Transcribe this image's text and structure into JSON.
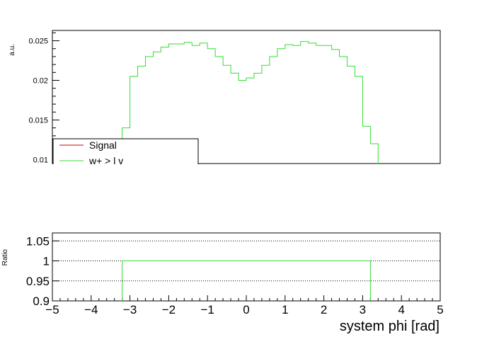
{
  "chart_data": [
    {
      "panel": "top",
      "type": "step-histogram",
      "ylabel": "a.u.",
      "xlim": [
        -5,
        5
      ],
      "ylim": [
        0.0095,
        0.0263
      ],
      "yticks": [
        0.01,
        0.015,
        0.02,
        0.025
      ],
      "ytick_labels": [
        "0.01",
        "0.015",
        "0.02",
        "0.025"
      ],
      "grid": false,
      "legend": {
        "placement": "bottom-left",
        "entries": [
          {
            "label": "Signal",
            "color": "#cc0000"
          },
          {
            "label": "w+ > l v",
            "color": "#33dd33"
          }
        ]
      },
      "series": [
        {
          "name": "w+ > l v",
          "color": "#33dd33",
          "bin_edges": [
            -3.4,
            -3.2,
            -3.0,
            -2.8,
            -2.6,
            -2.4,
            -2.2,
            -2.0,
            -1.8,
            -1.6,
            -1.4,
            -1.2,
            -1.0,
            -0.8,
            -0.6,
            -0.4,
            -0.2,
            0.0,
            0.2,
            0.4,
            0.6,
            0.8,
            1.0,
            1.2,
            1.4,
            1.6,
            1.8,
            2.0,
            2.2,
            2.4,
            2.6,
            2.8,
            3.0,
            3.2,
            3.4
          ],
          "values": [
            0.012,
            0.014,
            0.0205,
            0.0218,
            0.023,
            0.0236,
            0.0242,
            0.0246,
            0.0246,
            0.0248,
            0.0244,
            0.0247,
            0.024,
            0.023,
            0.0219,
            0.0209,
            0.02,
            0.0203,
            0.0209,
            0.0219,
            0.023,
            0.024,
            0.0245,
            0.0244,
            0.0249,
            0.0247,
            0.0244,
            0.0244,
            0.0239,
            0.023,
            0.0218,
            0.0205,
            0.0142,
            0.012
          ]
        }
      ]
    },
    {
      "panel": "bottom",
      "type": "step-histogram",
      "ylabel": "Ratio",
      "xlabel": "system phi [rad]",
      "xlim": [
        -5,
        5
      ],
      "ylim": [
        0.9,
        1.1
      ],
      "yticks": [
        0.9,
        0.95,
        1,
        1.05,
        1.1
      ],
      "ytick_labels": [
        "0.9",
        "0.95",
        "1",
        "1.05",
        "1.1"
      ],
      "xticks": [
        -5,
        -4,
        -3,
        -2,
        -1,
        0,
        1,
        2,
        3,
        4,
        5
      ],
      "xtick_labels": [
        "−5",
        "−4",
        "−3",
        "−2",
        "−1",
        "0",
        "1",
        "2",
        "3",
        "4",
        "5"
      ],
      "grid_lines_y": [
        0.95,
        1,
        1.05
      ],
      "series": [
        {
          "name": "ratio",
          "color": "#33dd33",
          "x_start": -3.2,
          "x_end": 3.2,
          "value": 1.0
        }
      ]
    }
  ]
}
